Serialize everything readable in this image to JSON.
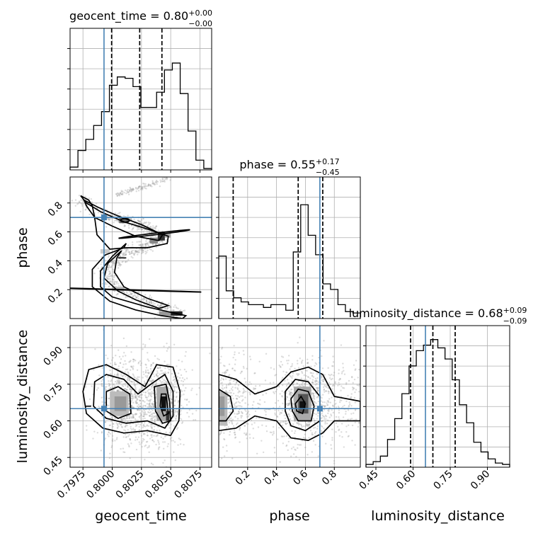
{
  "chart_data": {
    "type": "corner",
    "parameters": [
      "geocent_time",
      "phase",
      "luminosity_distance"
    ],
    "truth_color": "#4682b4",
    "titles": {
      "geocent_time": {
        "prefix": "geocent_time = 0.80",
        "sup": "+0.00",
        "sub": "−0.00"
      },
      "phase": {
        "prefix": "phase = 0.55",
        "sup": "+0.17",
        "sub": "−0.45"
      },
      "luminosity_distance": {
        "prefix": "luminosity_distance = 0.68",
        "sup": "+0.09",
        "sub": "−0.09"
      }
    },
    "axis_labels": {
      "geocent_time": "geocent_time",
      "phase": "phase",
      "luminosity_distance": "luminosity_distance"
    },
    "ranges": {
      "geocent_time": [
        0.7964,
        0.8085
      ],
      "phase": [
        0.0,
        0.98
      ],
      "luminosity_distance": [
        0.41,
        0.99
      ]
    },
    "ticks": {
      "geocent_time": [
        {
          "v": 0.7975,
          "label": "0.7975"
        },
        {
          "v": 0.8,
          "label": "0.8000"
        },
        {
          "v": 0.8025,
          "label": "0.8025"
        },
        {
          "v": 0.805,
          "label": "0.8050"
        },
        {
          "v": 0.8075,
          "label": "0.8075"
        }
      ],
      "phase": [
        {
          "v": 0.2,
          "label": "0.2"
        },
        {
          "v": 0.4,
          "label": "0.4"
        },
        {
          "v": 0.6,
          "label": "0.6"
        },
        {
          "v": 0.8,
          "label": "0.8"
        }
      ],
      "luminosity_distance": [
        {
          "v": 0.45,
          "label": "0.45"
        },
        {
          "v": 0.6,
          "label": "0.60"
        },
        {
          "v": 0.75,
          "label": "0.75"
        },
        {
          "v": 0.9,
          "label": "0.90"
        }
      ]
    },
    "truths": {
      "geocent_time": 0.7993,
      "phase": 0.7,
      "luminosity_distance": 0.65
    },
    "quantiles": {
      "geocent_time": [
        0.79995,
        0.80235,
        0.80425
      ],
      "phase": [
        0.1,
        0.55,
        0.72
      ],
      "luminosity_distance": [
        0.59,
        0.68,
        0.77
      ]
    },
    "histograms": {
      "geocent_time": [
        0.02,
        0.14,
        0.22,
        0.32,
        0.42,
        0.61,
        0.67,
        0.66,
        0.6,
        0.45,
        0.45,
        0.56,
        0.72,
        0.77,
        0.55,
        0.28,
        0.07,
        0.01
      ],
      "phase": [
        0.45,
        0.2,
        0.15,
        0.12,
        0.1,
        0.1,
        0.08,
        0.1,
        0.1,
        0.06,
        0.48,
        0.82,
        0.6,
        0.46,
        0.25,
        0.21,
        0.1,
        0.05,
        0.04
      ],
      "luminosity_distance": [
        0.02,
        0.04,
        0.08,
        0.2,
        0.35,
        0.53,
        0.73,
        0.84,
        0.88,
        0.92,
        0.86,
        0.78,
        0.63,
        0.45,
        0.32,
        0.18,
        0.11,
        0.06,
        0.03,
        0.02
      ]
    },
    "grid": true
  }
}
